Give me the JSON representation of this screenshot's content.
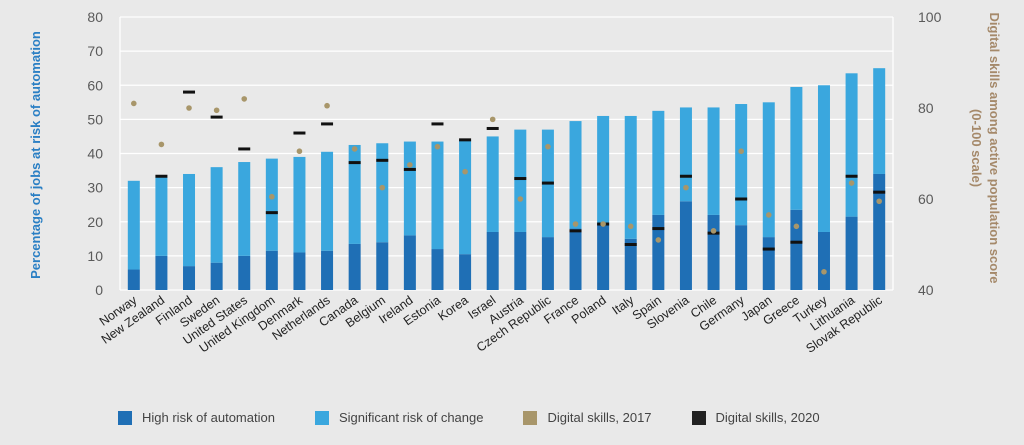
{
  "chart_data": {
    "type": "bar",
    "categories": [
      "Norway",
      "New Zealand",
      "Finland",
      "Sweden",
      "United States",
      "United Kingdom",
      "Denmark",
      "Netherlands",
      "Canada",
      "Belgium",
      "Ireland",
      "Estonia",
      "Korea",
      "Israel",
      "Austria",
      "Czech Republic",
      "France",
      "Poland",
      "Italy",
      "Spain",
      "Slovenia",
      "Chile",
      "Germany",
      "Japan",
      "Greece",
      "Turkey",
      "Lithuania",
      "Slovak Republic"
    ],
    "series": [
      {
        "name": "High risk of automation",
        "axis": "left",
        "color": "#1f6fb5",
        "values": [
          6,
          10,
          7,
          8,
          10,
          11.5,
          11,
          11.5,
          13.5,
          14,
          16,
          12,
          10.5,
          17,
          17,
          15.5,
          18,
          19.5,
          15,
          22,
          26,
          22,
          19,
          15.5,
          23.5,
          17,
          21.5,
          34
        ]
      },
      {
        "name": "Significant risk of change",
        "axis": "left",
        "color": "#3aa7de",
        "values": [
          26,
          23,
          27,
          28,
          27.5,
          27,
          28,
          29,
          29,
          29,
          27.5,
          31.5,
          33.5,
          28,
          30,
          31.5,
          31.5,
          31.5,
          36,
          30.5,
          27.5,
          31.5,
          35.5,
          39.5,
          36,
          43,
          42,
          31
        ]
      },
      {
        "name": "Digital skills, 2017",
        "axis": "right",
        "color": "#a8966a",
        "values": [
          81,
          72,
          80,
          79.5,
          82,
          60.5,
          70.5,
          80.5,
          71,
          62.5,
          67.5,
          71.5,
          66,
          77.5,
          60,
          71.5,
          54.5,
          54.5,
          54,
          51,
          62.5,
          53,
          70.5,
          56.5,
          54,
          44,
          63.5,
          59.5
        ]
      },
      {
        "name": "Digital skills, 2020",
        "axis": "right",
        "color": "#111111",
        "values": [
          null,
          65,
          83.5,
          78,
          71,
          57,
          74.5,
          76.5,
          68,
          68.5,
          66.5,
          76.5,
          73,
          75.5,
          64.5,
          63.5,
          53,
          54.5,
          50,
          53.5,
          65,
          52.5,
          60,
          49,
          50.5,
          null,
          65,
          61.5
        ]
      }
    ],
    "y_left": {
      "label": "Percentage of jobs at risk of automation",
      "range": [
        0,
        80
      ],
      "ticks": [
        0,
        10,
        20,
        30,
        40,
        50,
        60,
        70,
        80
      ]
    },
    "y_right": {
      "label": "Digital skills among active population score",
      "label_line2": "(0-100 scale)",
      "range": [
        40,
        100
      ],
      "ticks": [
        40,
        60,
        80,
        100
      ]
    },
    "grid": true,
    "legend": "bottom"
  },
  "colors": {
    "left_axis": "#2a7fc4",
    "right_axis": "#a5896a",
    "grid": "#ffffff",
    "background": "#e9e9e9"
  }
}
